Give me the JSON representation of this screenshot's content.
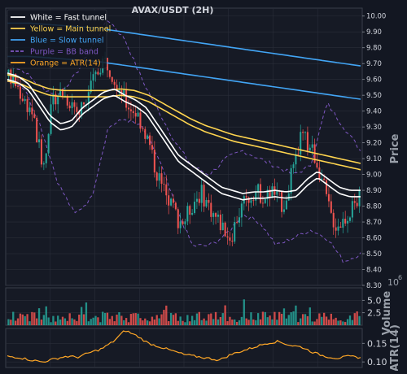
{
  "title": "AVAX/USDT (2H)",
  "colors": {
    "background": "#131722",
    "axes_bg": "#161a25",
    "grid": "#2a2e39",
    "text": "#d1d4dc",
    "up": "#26a69a",
    "down": "#ef5350",
    "fast": "#ffffff",
    "main": "#ffd54f",
    "slow": "#42a5f5",
    "bb": "#7e57c2",
    "atr": "#ffa726"
  },
  "legend": [
    {
      "label": "White = Fast tunnel",
      "color": "#ffffff",
      "dash": false
    },
    {
      "label": "Yellow = Main tunnel",
      "color": "#ffd54f",
      "dash": false
    },
    {
      "label": "Blue = Slow tunnel",
      "color": "#42a5f5",
      "dash": false
    },
    {
      "label": "Purple = BB band",
      "color": "#7e57c2",
      "dash": true
    },
    {
      "label": "Orange = ATR(14)",
      "color": "#ffa726",
      "dash": false
    }
  ],
  "chart_data": [
    {
      "type": "candlestick",
      "title": "AVAX/USDT (2H)",
      "ylabel": "Price",
      "ylim": [
        8.3,
        10.05
      ],
      "yticks": [
        8.3,
        8.4,
        8.5,
        8.6,
        8.7,
        8.8,
        8.9,
        9.0,
        9.1,
        9.2,
        9.3,
        9.4,
        9.5,
        9.6,
        9.7,
        9.8,
        9.9,
        10.0
      ],
      "grid": true,
      "legend_position": "top-left",
      "candle_count": 150,
      "price_path": [
        9.62,
        9.58,
        9.52,
        9.45,
        9.4,
        9.2,
        9.05,
        9.35,
        9.5,
        9.52,
        9.48,
        9.45,
        9.38,
        9.48,
        9.55,
        9.62,
        9.72,
        9.7,
        9.62,
        9.55,
        9.45,
        9.42,
        9.38,
        9.3,
        9.2,
        9.05,
        8.95,
        8.85,
        8.8,
        8.72,
        8.7,
        8.78,
        8.85,
        8.88,
        8.82,
        8.75,
        8.7,
        8.65,
        8.6,
        8.72,
        8.8,
        8.85,
        8.9,
        8.88,
        8.85,
        8.9,
        8.85,
        8.8,
        8.95,
        9.05,
        9.25,
        9.2,
        9.15,
        9.05,
        8.9,
        8.75,
        8.68,
        8.7,
        8.75,
        8.8,
        8.85
      ],
      "series": [
        {
          "name": "White = Fast tunnel",
          "type": "line",
          "values": [
            9.62,
            9.6,
            9.55,
            9.45,
            9.35,
            9.3,
            9.32,
            9.4,
            9.45,
            9.5,
            9.52,
            9.48,
            9.45,
            9.4,
            9.3,
            9.2,
            9.1,
            9.05,
            9.0,
            8.95,
            8.9,
            8.88,
            8.86,
            8.87,
            8.87,
            8.88,
            8.87,
            8.88,
            8.95,
            9.0,
            8.95,
            8.9,
            8.88,
            8.88
          ]
        },
        {
          "name": "Yellow = Main tunnel",
          "type": "line",
          "values": [
            9.62,
            9.6,
            9.56,
            9.53,
            9.52,
            9.52,
            9.52,
            9.52,
            9.53,
            9.52,
            9.49,
            9.44,
            9.39,
            9.34,
            9.3,
            9.27,
            9.24,
            9.22,
            9.2,
            9.18,
            9.16,
            9.14,
            9.12,
            9.1,
            9.08,
            9.06
          ]
        },
        {
          "name": "Blue = Slow tunnel",
          "type": "line",
          "values": [
            9.95,
            9.95,
            9.94,
            9.93,
            9.92,
            9.9,
            9.88,
            9.86,
            9.84,
            9.82,
            9.8,
            9.78,
            9.76,
            9.74,
            9.72,
            9.7,
            9.68
          ]
        },
        {
          "name": "Purple = BB band",
          "type": "dashed-band",
          "upper": [
            9.7,
            9.65,
            9.55,
            9.5,
            9.62,
            9.8,
            9.98,
            9.85,
            9.6,
            9.4,
            9.2,
            9.05,
            9.0,
            9.1,
            9.15,
            9.1,
            9.05,
            9.0,
            9.05,
            9.45,
            9.3,
            9.15
          ],
          "lower": [
            9.6,
            9.55,
            9.3,
            8.95,
            8.75,
            8.85,
            9.3,
            9.35,
            9.3,
            9.1,
            8.8,
            8.55,
            8.55,
            8.62,
            8.75,
            8.7,
            8.55,
            8.6,
            8.65,
            8.6,
            8.45,
            8.5
          ]
        }
      ]
    },
    {
      "type": "bar",
      "ylabel": "Volume",
      "scale_label": "10^6",
      "yticks": [
        2.5,
        5.0
      ],
      "ylim": [
        0,
        7.5
      ]
    },
    {
      "type": "line",
      "ylabel": "ATR(14)",
      "yticks": [
        0.1,
        0.15
      ],
      "ylim": [
        0.085,
        0.19
      ],
      "series": [
        {
          "name": "Orange = ATR(14)",
          "values": [
            0.115,
            0.112,
            0.105,
            0.1,
            0.108,
            0.115,
            0.113,
            0.125,
            0.135,
            0.155,
            0.185,
            0.17,
            0.15,
            0.14,
            0.13,
            0.12,
            0.115,
            0.11,
            0.105,
            0.12,
            0.13,
            0.14,
            0.15,
            0.155,
            0.145,
            0.14,
            0.125,
            0.115,
            0.11,
            0.115,
            0.112
          ]
        }
      ]
    }
  ]
}
